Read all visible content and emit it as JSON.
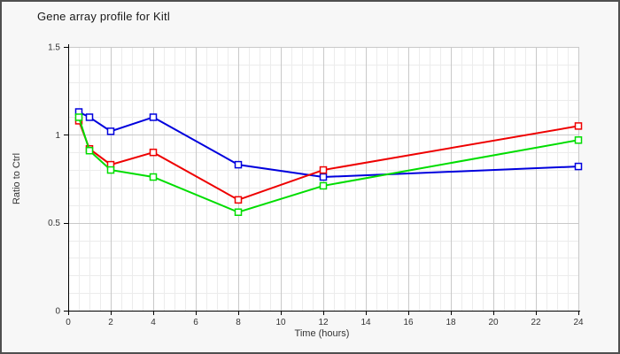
{
  "figure": {
    "background": "#f7f7f7",
    "border_color": "#4f4f4f",
    "plot_background": "#ffffff",
    "grid_minor_color": "#ececec",
    "grid_major_color": "#c9c9c9",
    "axis_color": "#000000",
    "tick_text_color": "#333333"
  },
  "chart_data": {
    "type": "line",
    "title": "Gene array profile for Kitl",
    "xlabel": "Time (hours)",
    "ylabel": "Ratio to Ctrl",
    "x": [
      0.5,
      1,
      2,
      4,
      8,
      12,
      24
    ],
    "series": [
      {
        "name": "blue-series",
        "color": "#0000dd",
        "values": [
          1.13,
          1.1,
          1.02,
          1.1,
          0.83,
          0.76,
          0.82
        ]
      },
      {
        "name": "red-series",
        "color": "#ee0000",
        "values": [
          1.08,
          0.92,
          0.83,
          0.9,
          0.63,
          0.8,
          1.05
        ]
      },
      {
        "name": "green-series",
        "color": "#00dd00",
        "values": [
          1.1,
          0.91,
          0.8,
          0.76,
          0.56,
          0.71,
          0.97
        ]
      }
    ],
    "xlim": [
      0,
      24
    ],
    "ylim": [
      0,
      1.5
    ],
    "x_ticks": [
      0,
      2,
      4,
      6,
      8,
      10,
      12,
      14,
      16,
      18,
      20,
      22,
      24
    ],
    "y_ticks": [
      0,
      0.5,
      1,
      1.5
    ],
    "y_tick_labels": [
      "0",
      "0.5",
      "1",
      "1.5"
    ],
    "minor_x_step": 0.5,
    "minor_y_step": 0.1,
    "grid": true,
    "legend": false,
    "marker": "open-square"
  }
}
